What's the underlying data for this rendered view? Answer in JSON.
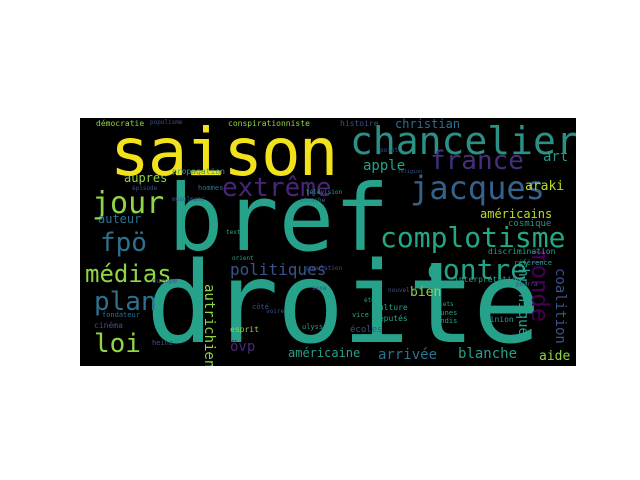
{
  "wordcloud": {
    "colors": {
      "yellow": "#f2e21c",
      "green": "#8ed646",
      "lime": "#b8de29",
      "teal": "#26a18a",
      "teal2": "#2a9187",
      "cyan": "#22a884",
      "blue": "#2c718e",
      "blue2": "#33638d",
      "indigo": "#3b528b",
      "purple": "#472f7d",
      "violet": "#482677",
      "deep": "#440154"
    },
    "words": [
      {
        "text": "bref",
        "color": "teal"
      },
      {
        "text": "droite",
        "color": "teal"
      },
      {
        "text": "saison",
        "color": "yellow"
      },
      {
        "text": "chancelier",
        "color": "teal2"
      },
      {
        "text": "france",
        "color": "purple"
      },
      {
        "text": "extrême",
        "color": "violet"
      },
      {
        "text": "jacques",
        "color": "blue2"
      },
      {
        "text": "monde",
        "color": "deep"
      },
      {
        "text": "jour",
        "color": "green"
      },
      {
        "text": "fpö",
        "color": "blue"
      },
      {
        "text": "complotisme",
        "color": "cyan"
      },
      {
        "text": "contre",
        "color": "teal"
      },
      {
        "text": "médias",
        "color": "green"
      },
      {
        "text": "politiques",
        "color": "indigo"
      },
      {
        "text": "plan",
        "color": "blue"
      },
      {
        "text": "loi",
        "color": "green"
      },
      {
        "text": "christian",
        "color": "blue"
      },
      {
        "text": "art",
        "color": "teal2"
      },
      {
        "text": "apple",
        "color": "teal"
      },
      {
        "text": "araki",
        "color": "lime"
      },
      {
        "text": "américains",
        "color": "lime"
      },
      {
        "text": "auprès",
        "color": "green"
      },
      {
        "text": "auteur",
        "color": "blue"
      },
      {
        "text": "bien",
        "color": "green"
      },
      {
        "text": "chronique",
        "color": "teal"
      },
      {
        "text": "coalition",
        "color": "indigo"
      },
      {
        "text": "aide",
        "color": "green"
      },
      {
        "text": "blanche",
        "color": "teal"
      },
      {
        "text": "arrivée",
        "color": "blue"
      },
      {
        "text": "américaine",
        "color": "teal"
      },
      {
        "text": "övp",
        "color": "violet"
      },
      {
        "text": "autrichiens",
        "color": "green"
      },
      {
        "text": "démocratie",
        "color": "green"
      },
      {
        "text": "populisme",
        "color": "indigo"
      },
      {
        "text": "conspirationniste",
        "color": "green"
      },
      {
        "text": "histoire",
        "color": "indigo"
      },
      {
        "text": "propagation",
        "color": "teal"
      },
      {
        "text": "hommes",
        "color": "blue"
      },
      {
        "text": "musulmans",
        "color": "indigo"
      },
      {
        "text": "strache",
        "color": "blue"
      },
      {
        "text": "télévision",
        "color": "teal"
      },
      {
        "text": "ulysses",
        "color": "teal"
      },
      {
        "text": "cosmique",
        "color": "teal2"
      },
      {
        "text": "discrimination",
        "color": "teal"
      },
      {
        "text": "interprétation",
        "color": "teal"
      },
      {
        "text": "population",
        "color": "indigo"
      },
      {
        "text": "culture",
        "color": "teal"
      },
      {
        "text": "députés",
        "color": "teal"
      },
      {
        "text": "écoles",
        "color": "indigo"
      },
      {
        "text": "vice",
        "color": "teal"
      },
      {
        "text": "esprit",
        "color": "green"
      },
      {
        "text": "cinéma",
        "color": "indigo"
      },
      {
        "text": "fondateur",
        "color": "blue"
      },
      {
        "text": "jaunes",
        "color": "teal"
      },
      {
        "text": "gilets",
        "color": "teal"
      },
      {
        "text": "tandis",
        "color": "teal"
      },
      {
        "text": "opinion",
        "color": "teal"
      },
      {
        "text": "référence",
        "color": "teal"
      },
      {
        "text": "nouvelle",
        "color": "indigo"
      },
      {
        "text": "europe",
        "color": "indigo"
      },
      {
        "text": "orient",
        "color": "teal"
      },
      {
        "text": "texte",
        "color": "teal"
      },
      {
        "text": "côté",
        "color": "indigo"
      },
      {
        "text": "voire",
        "color": "indigo"
      },
      {
        "text": "heinz",
        "color": "indigo"
      },
      {
        "text": "épisode",
        "color": "indigo"
      },
      {
        "text": "point",
        "color": "indigo"
      },
      {
        "text": "pourra",
        "color": "indigo"
      },
      {
        "text": "été",
        "color": "teal"
      },
      {
        "text": "sexe",
        "color": "indigo"
      },
      {
        "text": "religion",
        "color": "indigo"
      }
    ]
  }
}
